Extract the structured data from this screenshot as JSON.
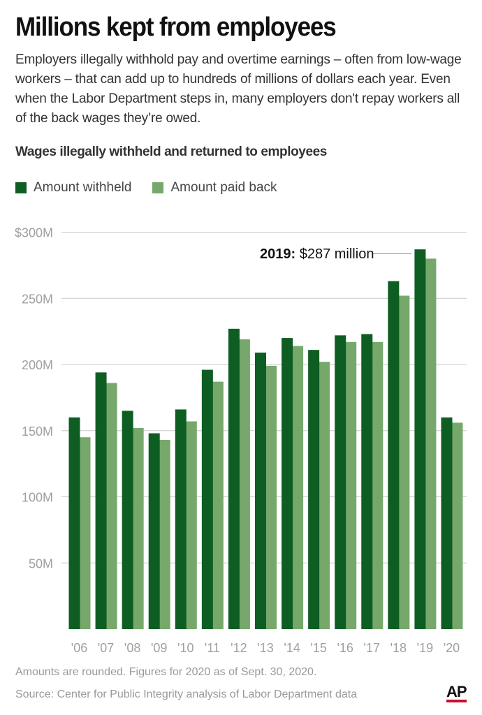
{
  "header": {
    "title": "Millions kept from employees",
    "subtitle": "Employers illegally withhold pay and overtime earnings – often from low-wage workers – that can add up to hundreds of millions of dollars each year. Even when the Labor Department steps in, many employers don't repay workers all of the back wages they’re owed."
  },
  "chart_heading": "Wages illegally withheld and returned to employees",
  "legend": {
    "withheld": "Amount withheld",
    "paid_back": "Amount paid back"
  },
  "colors": {
    "withheld": "#0e5e23",
    "paid_back": "#76a86b",
    "gridline": "#c8c8c8",
    "axis_label": "#a0a0a0"
  },
  "chart_data": {
    "type": "bar",
    "title": "Wages illegally withheld and returned to employees",
    "xlabel": "",
    "ylabel": "",
    "categories": [
      "'06",
      "'07",
      "'08",
      "'09",
      "'10",
      "'11",
      "'12",
      "'13",
      "'14",
      "'15",
      "'16",
      "'17",
      "'18",
      "'19",
      "'20"
    ],
    "series": [
      {
        "name": "Amount withheld",
        "values": [
          160,
          194,
          165,
          148,
          166,
          196,
          227,
          209,
          220,
          211,
          222,
          223,
          263,
          287,
          160
        ]
      },
      {
        "name": "Amount paid back",
        "values": [
          145,
          186,
          152,
          143,
          157,
          187,
          219,
          199,
          214,
          202,
          217,
          217,
          252,
          280,
          156
        ]
      }
    ],
    "ylim": [
      0,
      300
    ],
    "yticks": [
      50,
      100,
      150,
      200,
      250,
      300
    ],
    "ytick_labels": [
      "50M",
      "100M",
      "150M",
      "200M",
      "250M",
      "$300M"
    ],
    "grid": true,
    "legend_position": "top-left",
    "annotation": {
      "year_label": "2019:",
      "value_label": "$287 million",
      "category_index": 13
    }
  },
  "footer": {
    "note": "Amounts are rounded. Figures for 2020 as of Sept. 30, 2020.",
    "source": "Source:  Center for Public Integrity analysis of Labor Department data",
    "logo": "AP"
  }
}
